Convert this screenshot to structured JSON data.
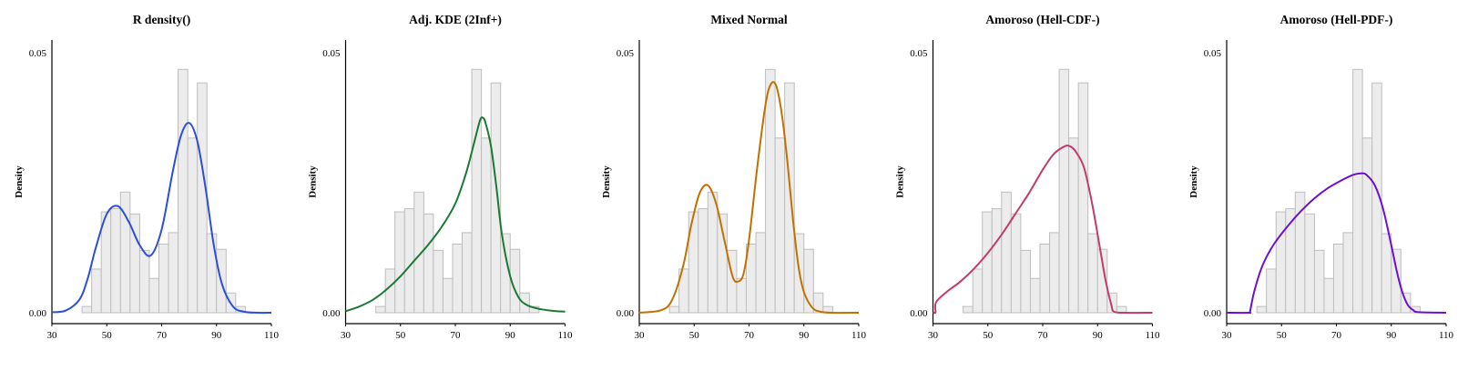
{
  "chart_data": [
    {
      "type": "line",
      "title": "R density()",
      "ylabel": "Density",
      "xlim": [
        30,
        110
      ],
      "ylim": [
        0,
        0.05
      ],
      "x_ticks": [
        30,
        50,
        70,
        90,
        110
      ],
      "y_ticks": [
        0.0,
        0.05
      ],
      "x_tick_labels": [
        "30",
        "50",
        "70",
        "90",
        "110"
      ],
      "y_tick_labels": [
        "0.00",
        "0.05"
      ],
      "color": "#2a4ed8",
      "histogram": {
        "bin_width": 3.5,
        "bin_starts": [
          41,
          44.5,
          48,
          51.5,
          55,
          58.5,
          62,
          65.5,
          69,
          72.5,
          76,
          79.5,
          83,
          86.5,
          90,
          93.5,
          97
        ],
        "values": [
          0.0012,
          0.0084,
          0.0194,
          0.02,
          0.0232,
          0.019,
          0.012,
          0.0066,
          0.0132,
          0.0154,
          0.0468,
          0.0336,
          0.0442,
          0.0152,
          0.0122,
          0.0038,
          0.0012
        ]
      },
      "series": [
        {
          "x": [
            30,
            35,
            40,
            43,
            46,
            50,
            54,
            58,
            62,
            66,
            70,
            74,
            77,
            80,
            83,
            86,
            89,
            92,
            96,
            100,
            105,
            110
          ],
          "y": [
            0.0001,
            0.0004,
            0.0025,
            0.0065,
            0.0125,
            0.019,
            0.0205,
            0.0175,
            0.013,
            0.011,
            0.016,
            0.027,
            0.034,
            0.0365,
            0.033,
            0.024,
            0.013,
            0.0055,
            0.0012,
            0.0002,
            0.0,
            0.0
          ]
        }
      ]
    },
    {
      "type": "line",
      "title": "Adj. KDE (2Inf+)",
      "ylabel": "Density",
      "xlim": [
        30,
        110
      ],
      "ylim": [
        0,
        0.05
      ],
      "x_ticks": [
        30,
        50,
        70,
        90,
        110
      ],
      "y_ticks": [
        0.0,
        0.05
      ],
      "x_tick_labels": [
        "30",
        "50",
        "70",
        "90",
        "110"
      ],
      "y_tick_labels": [
        "0.00",
        "0.05"
      ],
      "color": "#1a7a32",
      "histogram": {
        "bin_width": 3.5,
        "bin_starts": [
          41,
          44.5,
          48,
          51.5,
          55,
          58.5,
          62,
          65.5,
          69,
          72.5,
          76,
          79.5,
          83,
          86.5,
          90,
          93.5,
          97
        ],
        "values": [
          0.0012,
          0.0084,
          0.0194,
          0.02,
          0.0232,
          0.019,
          0.012,
          0.0066,
          0.0132,
          0.0154,
          0.0468,
          0.0336,
          0.0442,
          0.0152,
          0.0122,
          0.0038,
          0.0012
        ]
      },
      "series": [
        {
          "x": [
            30,
            35,
            40,
            45,
            50,
            55,
            60,
            65,
            70,
            74,
            77,
            79,
            80,
            81,
            83,
            85,
            87,
            90,
            93,
            96,
            100,
            105,
            110
          ],
          "y": [
            0.0003,
            0.0012,
            0.0025,
            0.0045,
            0.007,
            0.01,
            0.013,
            0.0165,
            0.021,
            0.027,
            0.033,
            0.037,
            0.0375,
            0.0365,
            0.032,
            0.024,
            0.015,
            0.007,
            0.003,
            0.0015,
            0.0008,
            0.0004,
            0.0002
          ]
        }
      ]
    },
    {
      "type": "line",
      "title": "Mixed Normal",
      "ylabel": "Density",
      "xlim": [
        30,
        110
      ],
      "ylim": [
        0,
        0.05
      ],
      "x_ticks": [
        30,
        50,
        70,
        90,
        110
      ],
      "y_ticks": [
        0.0,
        0.05
      ],
      "x_tick_labels": [
        "30",
        "50",
        "70",
        "90",
        "110"
      ],
      "y_tick_labels": [
        "0.00",
        "0.05"
      ],
      "color": "#c47000",
      "histogram": {
        "bin_width": 3.5,
        "bin_starts": [
          41,
          44.5,
          48,
          51.5,
          55,
          58.5,
          62,
          65.5,
          69,
          72.5,
          76,
          79.5,
          83,
          86.5,
          90,
          93.5,
          97
        ],
        "values": [
          0.0012,
          0.0084,
          0.0194,
          0.02,
          0.0232,
          0.019,
          0.012,
          0.0066,
          0.0132,
          0.0154,
          0.0468,
          0.0336,
          0.0442,
          0.0152,
          0.0122,
          0.0038,
          0.0012
        ]
      },
      "series": [
        {
          "x": [
            30,
            38,
            42,
            46,
            49,
            52,
            55,
            58,
            61,
            64,
            66,
            68,
            70,
            73,
            76,
            78,
            80,
            82,
            84,
            86,
            88,
            90,
            93,
            96,
            100,
            110
          ],
          "y": [
            0.0,
            0.0005,
            0.0025,
            0.009,
            0.017,
            0.023,
            0.0245,
            0.021,
            0.014,
            0.007,
            0.006,
            0.0075,
            0.014,
            0.028,
            0.04,
            0.044,
            0.0435,
            0.038,
            0.029,
            0.018,
            0.009,
            0.004,
            0.001,
            0.0002,
            0.0,
            0.0
          ]
        }
      ]
    },
    {
      "type": "line",
      "title": "Amoroso (Hell-CDF-)",
      "ylabel": "Density",
      "xlim": [
        30,
        110
      ],
      "ylim": [
        0,
        0.05
      ],
      "x_ticks": [
        30,
        50,
        70,
        90,
        110
      ],
      "y_ticks": [
        0.0,
        0.05
      ],
      "x_tick_labels": [
        "30",
        "50",
        "70",
        "90",
        "110"
      ],
      "y_tick_labels": [
        "0.00",
        "0.05"
      ],
      "color": "#c43a6e",
      "histogram": {
        "bin_width": 3.5,
        "bin_starts": [
          41,
          44.5,
          48,
          51.5,
          55,
          58.5,
          62,
          65.5,
          69,
          72.5,
          76,
          79.5,
          83,
          86.5,
          90,
          93.5,
          97
        ],
        "values": [
          0.0012,
          0.0084,
          0.0194,
          0.02,
          0.0232,
          0.019,
          0.012,
          0.0066,
          0.0132,
          0.0154,
          0.0468,
          0.0336,
          0.0442,
          0.0152,
          0.0122,
          0.0038,
          0.0012
        ]
      },
      "series": [
        {
          "x": [
            30,
            30.9,
            31.1,
            35,
            40,
            45,
            50,
            55,
            60,
            65,
            70,
            74,
            78,
            80,
            82,
            85,
            88,
            91,
            93,
            95,
            96,
            100,
            110
          ],
          "y": [
            0.0,
            0.0,
            0.002,
            0.004,
            0.006,
            0.0085,
            0.0115,
            0.015,
            0.019,
            0.023,
            0.0275,
            0.0305,
            0.032,
            0.032,
            0.031,
            0.028,
            0.021,
            0.012,
            0.006,
            0.0015,
            0.0002,
            0.0,
            0.0
          ]
        }
      ]
    },
    {
      "type": "line",
      "title": "Amoroso (Hell-PDF-)",
      "ylabel": "Density",
      "xlim": [
        30,
        110
      ],
      "ylim": [
        0,
        0.05
      ],
      "x_ticks": [
        30,
        50,
        70,
        90,
        110
      ],
      "y_ticks": [
        0.0,
        0.05
      ],
      "x_tick_labels": [
        "30",
        "50",
        "70",
        "90",
        "110"
      ],
      "y_tick_labels": [
        "0.00",
        "0.05"
      ],
      "color": "#6d0fd0",
      "histogram": {
        "bin_width": 3.5,
        "bin_starts": [
          41,
          44.5,
          48,
          51.5,
          55,
          58.5,
          62,
          65.5,
          69,
          72.5,
          76,
          79.5,
          83,
          86.5,
          90,
          93.5,
          97
        ],
        "values": [
          0.0012,
          0.0084,
          0.0194,
          0.02,
          0.0232,
          0.019,
          0.012,
          0.0066,
          0.0132,
          0.0154,
          0.0468,
          0.0336,
          0.0442,
          0.0152,
          0.0122,
          0.0038,
          0.0012
        ]
      },
      "series": [
        {
          "x": [
            30,
            38,
            38.5,
            40,
            43,
            47,
            52,
            57,
            62,
            67,
            72,
            76,
            79,
            81,
            84,
            87,
            90,
            92,
            94,
            96,
            98,
            100,
            110
          ],
          "y": [
            0.0,
            0.0,
            0.0002,
            0.004,
            0.009,
            0.013,
            0.0165,
            0.0195,
            0.022,
            0.024,
            0.0255,
            0.0265,
            0.0268,
            0.0265,
            0.0245,
            0.02,
            0.013,
            0.008,
            0.004,
            0.0015,
            0.0005,
            0.0001,
            0.0
          ]
        }
      ]
    }
  ]
}
